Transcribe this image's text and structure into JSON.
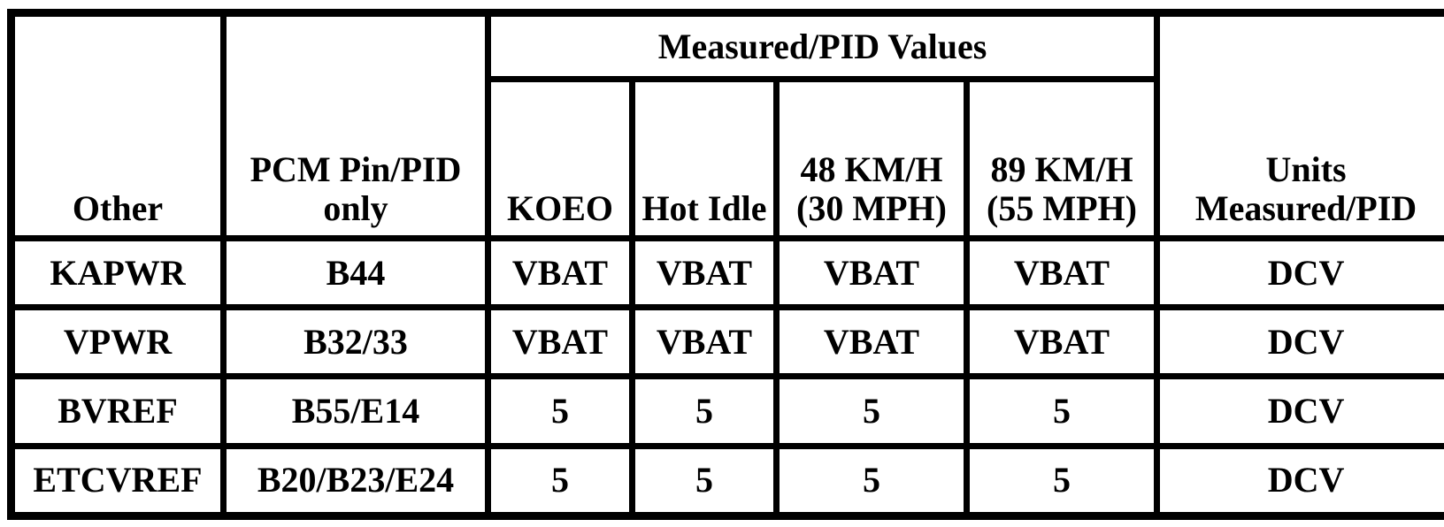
{
  "table": {
    "header": {
      "other": "Other",
      "pin": "PCM Pin/PID only",
      "group": "Measured/PID Values",
      "units": "Units Measured/PID",
      "conditions": [
        "KOEO",
        "Hot Idle",
        "48 KM/H (30 MPH)",
        "89 KM/H (55 MPH)"
      ]
    },
    "rows": [
      [
        "KAPWR",
        "B44",
        "VBAT",
        "VBAT",
        "VBAT",
        "VBAT",
        "DCV"
      ],
      [
        "VPWR",
        "B32/33",
        "VBAT",
        "VBAT",
        "VBAT",
        "VBAT",
        "DCV"
      ],
      [
        "BVREF",
        "B55/E14",
        "5",
        "5",
        "5",
        "5",
        "DCV"
      ],
      [
        "ETCVREF",
        "B20/B23/E24",
        "5",
        "5",
        "5",
        "5",
        "DCV"
      ]
    ]
  }
}
